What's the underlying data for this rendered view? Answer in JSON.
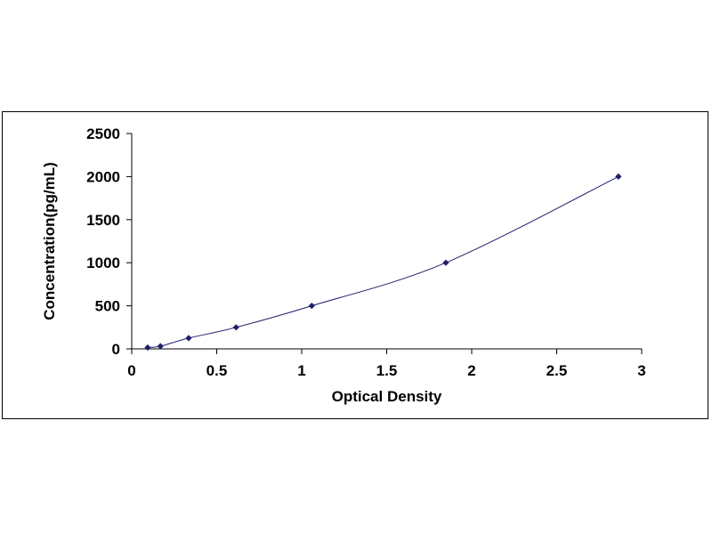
{
  "chart_data": {
    "type": "scatter",
    "title": "",
    "xlabel": "Optical Density",
    "ylabel": "Concentration(pg/mL)",
    "xlim": [
      0,
      3
    ],
    "ylim": [
      0,
      2500
    ],
    "x_ticks": [
      "0",
      "0.5",
      "1",
      "1.5",
      "2",
      "2.5",
      "3"
    ],
    "y_ticks": [
      "0",
      "500",
      "1000",
      "1500",
      "2000",
      "2500"
    ],
    "grid": false,
    "legend": "none",
    "line": "smooth",
    "colors": {
      "marker": "#1f1f6e",
      "line": "#1f1f6e",
      "axis": "#000000"
    },
    "series": [
      {
        "x": [
          0.094,
          0.169,
          0.335,
          0.614,
          1.059,
          1.848,
          2.863
        ],
        "y": [
          15.6,
          31.2,
          125,
          250,
          500,
          1000,
          2000
        ]
      }
    ]
  }
}
